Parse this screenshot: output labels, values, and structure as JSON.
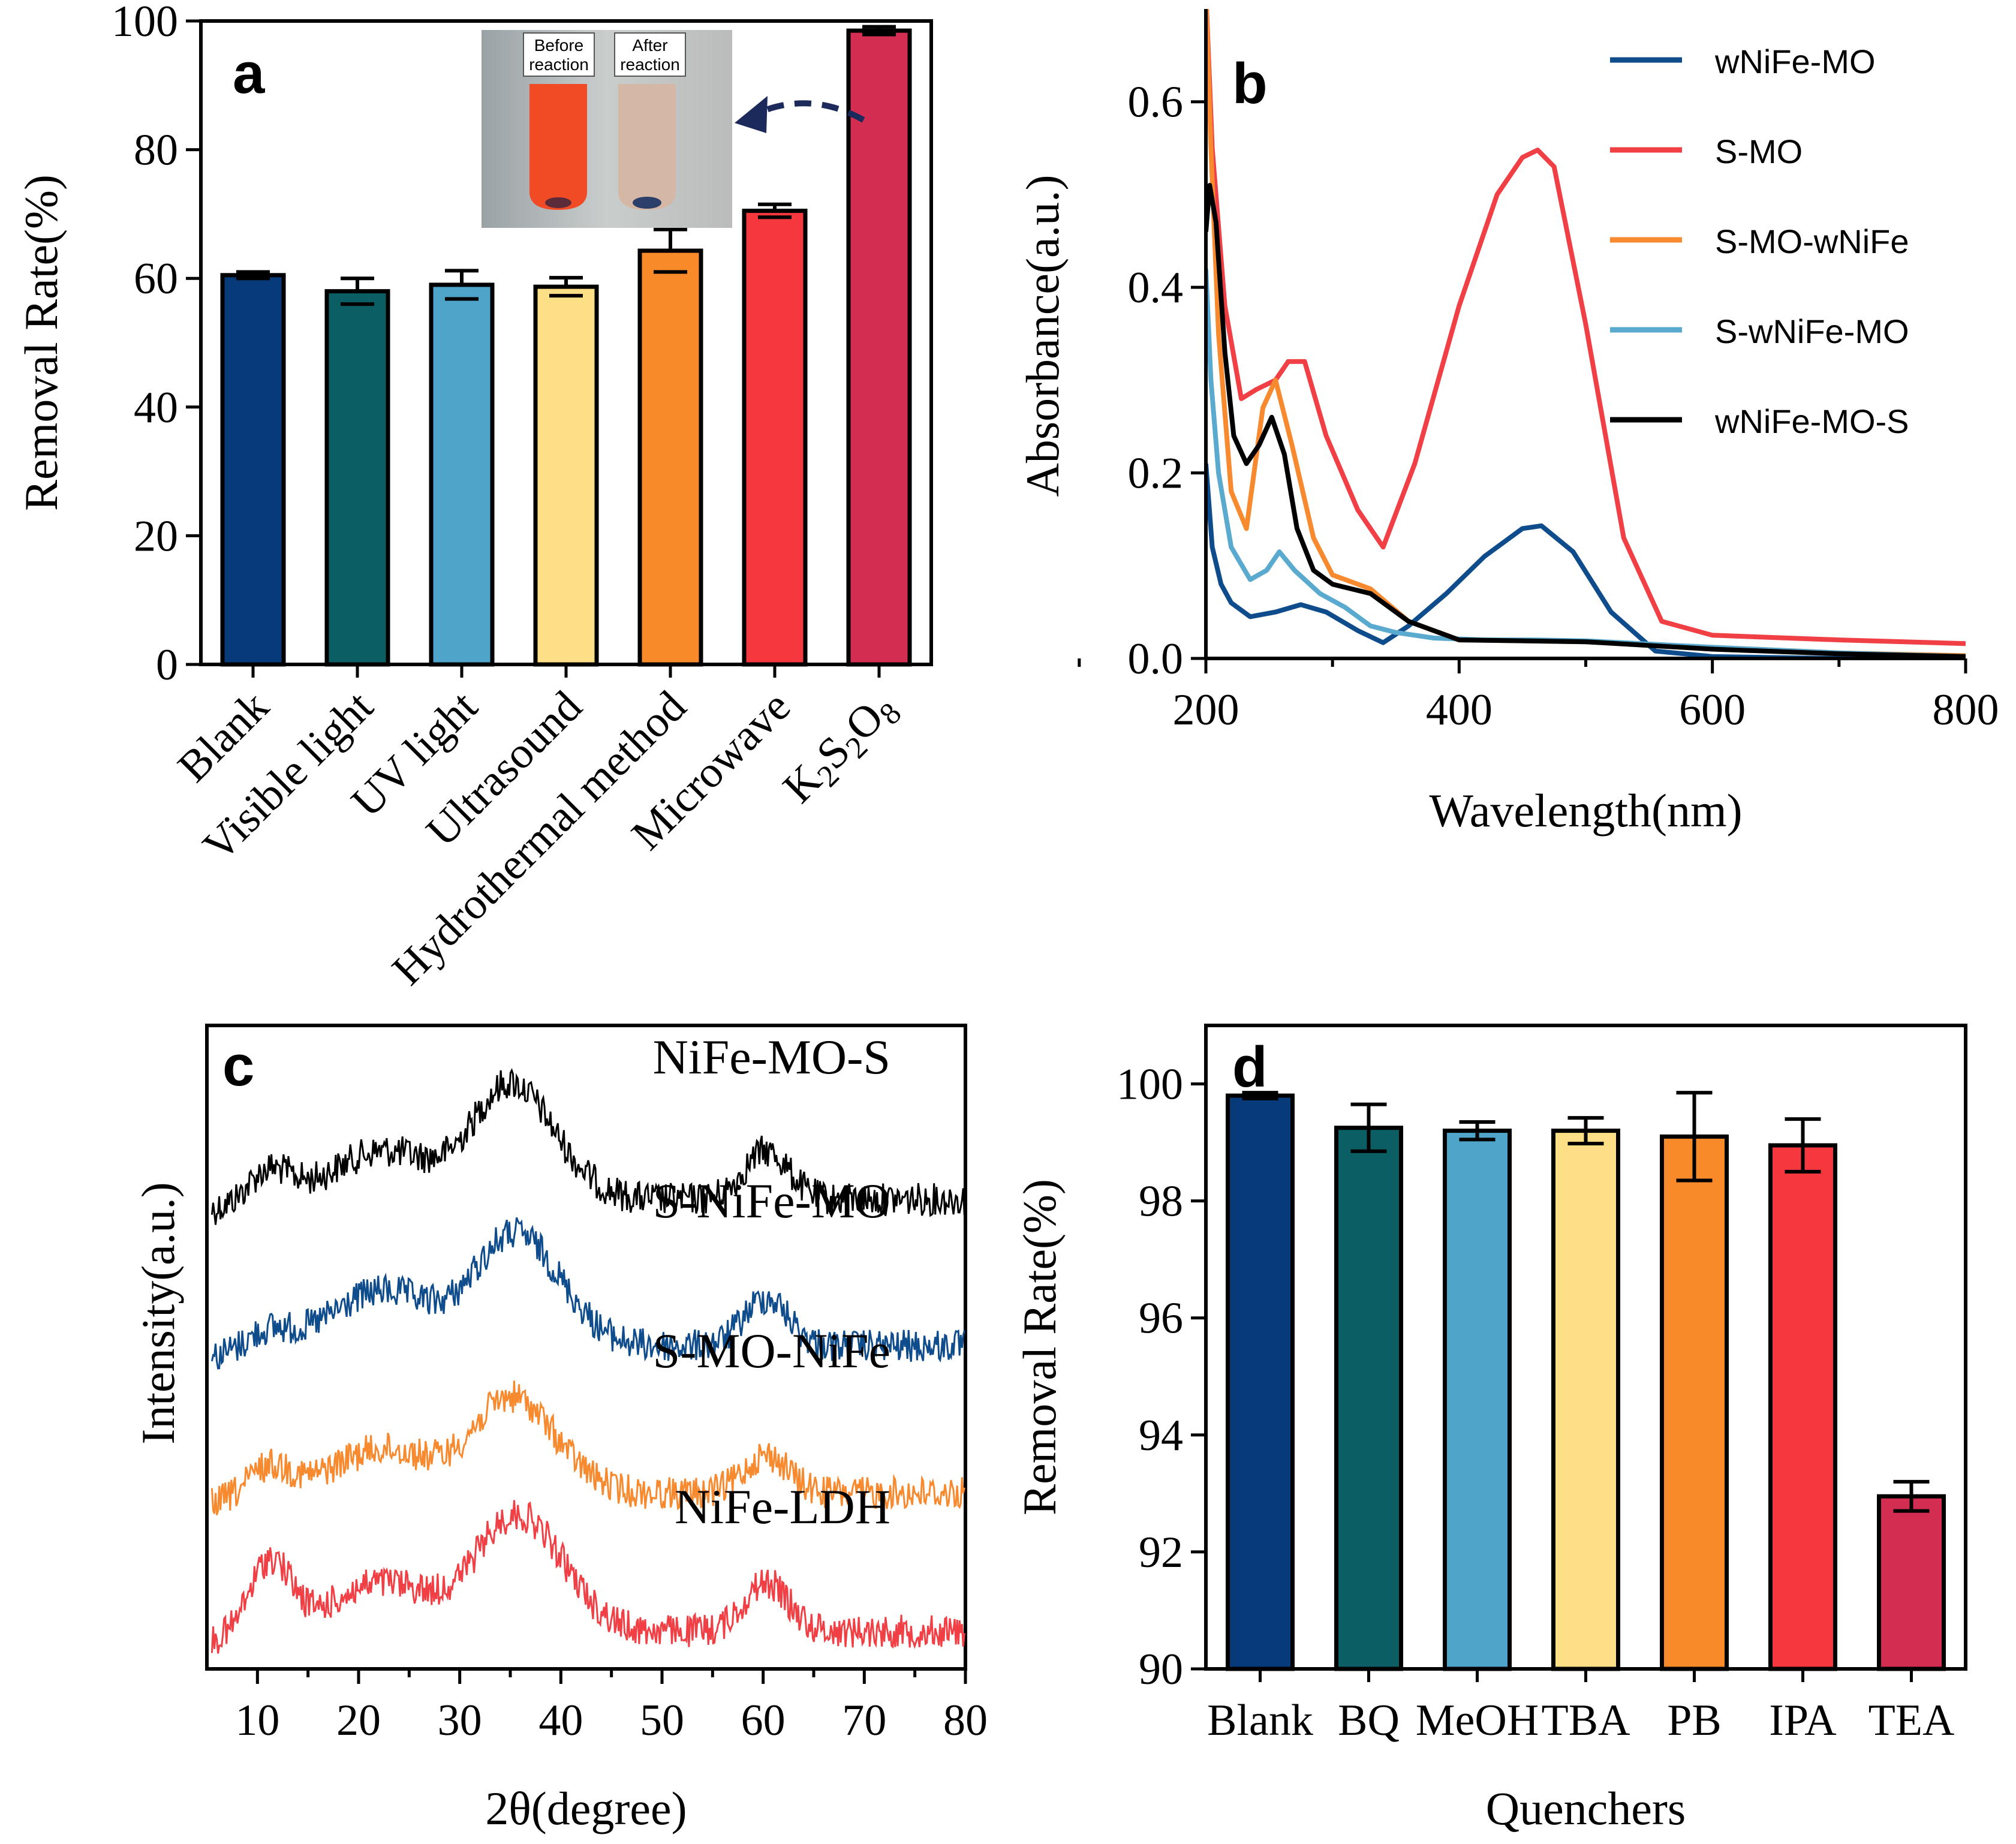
{
  "chart_data": [
    {
      "panel": "a",
      "type": "bar",
      "title": "",
      "xlabel": "",
      "ylabel": "Removal Rate(%)",
      "ylim": [
        0,
        100
      ],
      "yticks": [
        0,
        20,
        40,
        60,
        80,
        100
      ],
      "categories": [
        "Blank",
        "Visible light",
        "UV light",
        "Ultrasound",
        "Hydrothermal method",
        "Microwave",
        "K2S2O8"
      ],
      "values": [
        60.5,
        58.0,
        59.0,
        58.7,
        64.3,
        70.5,
        98.5
      ],
      "errors": [
        0.5,
        2.0,
        2.2,
        1.4,
        3.3,
        1.0,
        0.6
      ],
      "colors": [
        "#073A78",
        "#0B5E63",
        "#4EA5C9",
        "#FDDF86",
        "#F98A2A",
        "#F4383E",
        "#D42D52"
      ],
      "inset": {
        "label_before": "Before\nreaction",
        "label_after": "After\nreaction"
      }
    },
    {
      "panel": "b",
      "type": "line",
      "xlabel": "Wavelength(nm)",
      "ylabel": "Absorbance(a.u.)",
      "xlim": [
        200,
        800
      ],
      "ylim": [
        0,
        0.7
      ],
      "xticks": [
        200,
        400,
        600,
        800
      ],
      "yticks": [
        0.0,
        0.2,
        0.4,
        0.6
      ],
      "legend_position": "top-right",
      "series": [
        {
          "name": "wNiFe-MO",
          "color": "#0F4C8C",
          "x": [
            200,
            205,
            212,
            220,
            235,
            255,
            275,
            295,
            320,
            340,
            360,
            390,
            420,
            450,
            465,
            490,
            520,
            555,
            600,
            700,
            800
          ],
          "y": [
            0.21,
            0.12,
            0.08,
            0.06,
            0.045,
            0.05,
            0.058,
            0.05,
            0.03,
            0.017,
            0.035,
            0.07,
            0.11,
            0.14,
            0.143,
            0.115,
            0.05,
            0.008,
            0.002,
            0.0,
            0.0
          ]
        },
        {
          "name": "S-MO",
          "color": "#F04045",
          "x": [
            200,
            205,
            215,
            228,
            240,
            255,
            265,
            278,
            295,
            320,
            340,
            365,
            400,
            430,
            450,
            462,
            475,
            500,
            530,
            560,
            600,
            700,
            800
          ],
          "y": [
            0.72,
            0.55,
            0.38,
            0.28,
            0.29,
            0.3,
            0.32,
            0.32,
            0.24,
            0.16,
            0.12,
            0.21,
            0.38,
            0.5,
            0.54,
            0.548,
            0.53,
            0.36,
            0.13,
            0.04,
            0.025,
            0.02,
            0.016
          ]
        },
        {
          "name": "S-MO-wNiFe",
          "color": "#F7892F",
          "x": [
            200,
            204,
            210,
            220,
            232,
            245,
            255,
            268,
            285,
            300,
            330,
            360,
            400,
            500,
            600,
            700,
            800
          ],
          "y": [
            0.72,
            0.55,
            0.35,
            0.18,
            0.14,
            0.27,
            0.3,
            0.23,
            0.13,
            0.09,
            0.075,
            0.04,
            0.02,
            0.018,
            0.012,
            0.006,
            0.003
          ]
        },
        {
          "name": "S-wNiFe-MO",
          "color": "#5AAACF",
          "x": [
            200,
            204,
            210,
            220,
            235,
            248,
            258,
            270,
            290,
            310,
            330,
            350,
            380,
            420,
            460,
            500,
            600,
            700,
            800
          ],
          "y": [
            0.42,
            0.3,
            0.2,
            0.12,
            0.085,
            0.095,
            0.115,
            0.095,
            0.07,
            0.055,
            0.035,
            0.028,
            0.022,
            0.02,
            0.02,
            0.019,
            0.012,
            0.006,
            0.002
          ]
        },
        {
          "name": "wNiFe-MO-S",
          "color": "#000000",
          "x": [
            200,
            203,
            208,
            215,
            222,
            232,
            242,
            252,
            262,
            272,
            285,
            300,
            330,
            360,
            400,
            500,
            600,
            700,
            800
          ],
          "y": [
            0.46,
            0.51,
            0.47,
            0.33,
            0.24,
            0.21,
            0.23,
            0.26,
            0.22,
            0.14,
            0.095,
            0.08,
            0.07,
            0.04,
            0.02,
            0.018,
            0.01,
            0.005,
            0.002
          ]
        }
      ]
    },
    {
      "panel": "c",
      "type": "line",
      "xlabel": "2θ(degree)",
      "ylabel": "Intensity(a.u.)",
      "xlim": [
        5,
        80
      ],
      "xticks": [
        10,
        20,
        30,
        40,
        50,
        60,
        70,
        80
      ],
      "series": [
        {
          "name": "NiFe-MO-S",
          "color": "#000000"
        },
        {
          "name": "S-NiFe-MO",
          "color": "#0F4C8C"
        },
        {
          "name": "S-MO-NiFe",
          "color": "#F7892F"
        },
        {
          "name": "NiFe-LDH",
          "color": "#F04045"
        }
      ]
    },
    {
      "panel": "d",
      "type": "bar",
      "xlabel": "Quenchers",
      "ylabel": "Removal Rate(%)",
      "ylim": [
        90,
        101
      ],
      "yticks": [
        90,
        92,
        94,
        96,
        98,
        100
      ],
      "categories": [
        "Blank",
        "BQ",
        "MeOH",
        "TBA",
        "PB",
        "IPA",
        "TEA"
      ],
      "values": [
        99.8,
        99.25,
        99.2,
        99.2,
        99.1,
        98.95,
        92.95
      ],
      "errors": [
        0.05,
        0.4,
        0.15,
        0.22,
        0.75,
        0.45,
        0.25
      ],
      "colors": [
        "#073A78",
        "#0B5E63",
        "#4EA5C9",
        "#FDDF86",
        "#F98A2A",
        "#F4383E",
        "#D42D52"
      ]
    }
  ]
}
